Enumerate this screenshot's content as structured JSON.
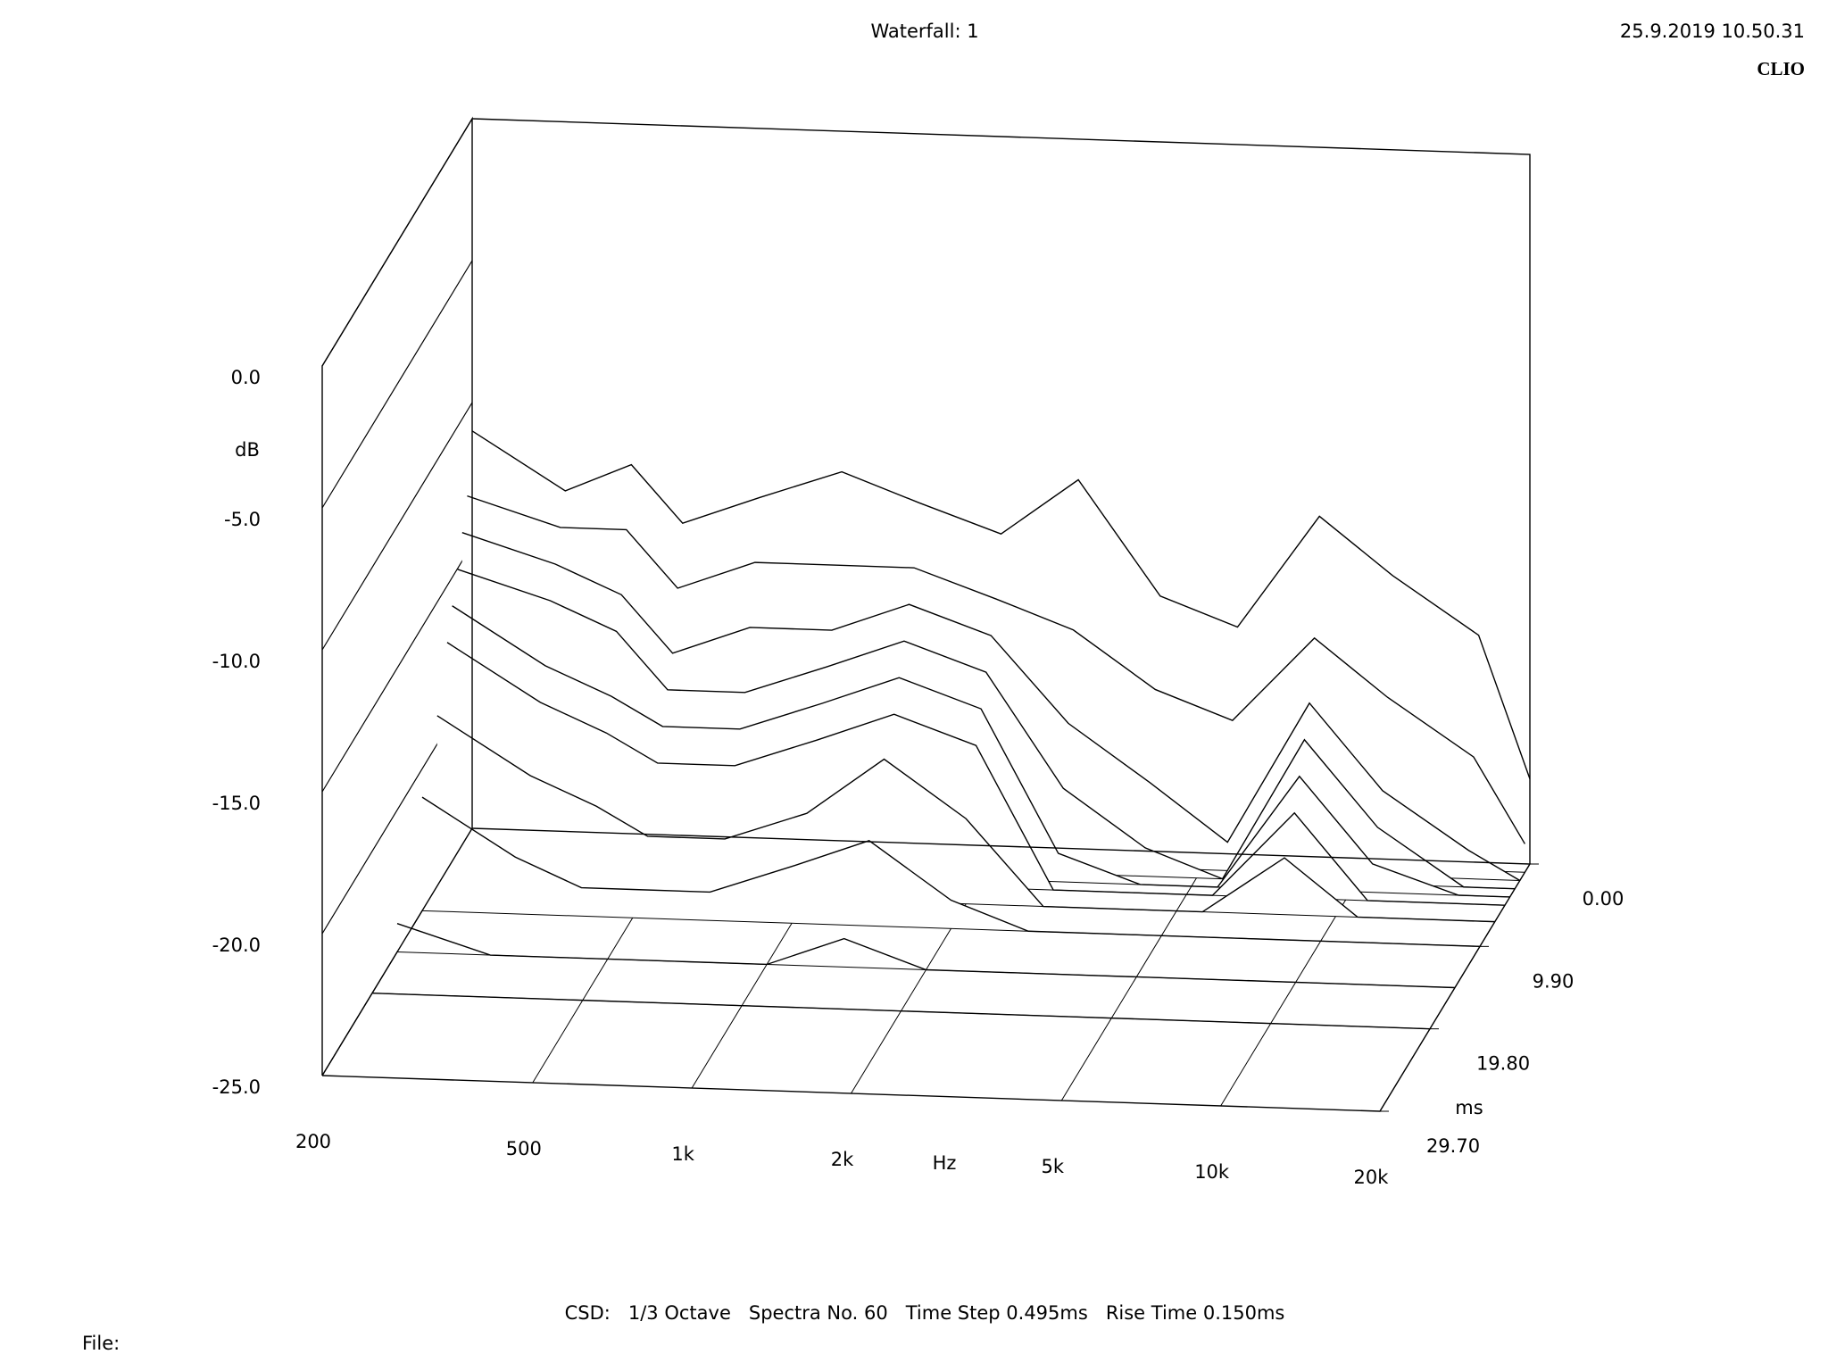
{
  "chart_data": {
    "type": "waterfall",
    "title": "Waterfall: 1",
    "timestamp": "25.9.2019 10.50.31",
    "brand": "CLIO",
    "footer": "CSD:   1/3 Octave   Spectra No. 60   Time Step 0.495ms   Rise Time 0.150ms",
    "file_label": "File:",
    "x_label": "Hz",
    "z_label": "dB",
    "t_label": "ms",
    "x_scale": "log",
    "color": "#000000",
    "x": [
      200,
      300,
      400,
      500,
      700,
      1000,
      1400,
      2000,
      2800,
      4000,
      5600,
      8000,
      11000,
      16000,
      20000
    ],
    "xlim": [
      200,
      20000
    ],
    "xticks": [
      200,
      500,
      {
        "value": 1000,
        "label": "1k"
      },
      {
        "value": 2000,
        "label": "2k"
      },
      {
        "value": 5000,
        "label": "5k"
      },
      {
        "value": 10000,
        "label": "10k"
      },
      {
        "value": 20000,
        "label": "20k"
      }
    ],
    "zlim": [
      -25,
      0
    ],
    "zticks": [
      {
        "value": 0,
        "label": "0.0"
      },
      {
        "value": -5,
        "label": "-5.0"
      },
      {
        "value": -10,
        "label": "-10.0"
      },
      {
        "value": -15,
        "label": "-15.0"
      },
      {
        "value": -20,
        "label": "-20.0"
      },
      {
        "value": -25,
        "label": "-25.0"
      }
    ],
    "tlim": [
      0,
      29.7
    ],
    "tticks": [
      {
        "value": 0,
        "label": "0.00"
      },
      {
        "value": 9.9,
        "label": "9.90"
      },
      {
        "value": 19.8,
        "label": "19.80"
      },
      {
        "value": 29.7,
        "label": "29.70"
      }
    ],
    "series": [
      {
        "time": 0,
        "values": [
          -11,
          -13,
          -12,
          -14,
          -13,
          -12,
          -13,
          -14,
          -12,
          -16,
          -17,
          -13,
          -15,
          -17,
          -22
        ]
      },
      {
        "time": 0.99,
        "values": [
          -13,
          -14,
          -14,
          -16,
          -15,
          -15,
          -15,
          -16,
          -17,
          -19,
          -20,
          -17,
          -19,
          -21,
          -24
        ]
      },
      {
        "time": 1.98,
        "values": [
          -14,
          -15,
          -16,
          -18,
          -17,
          -17,
          -16,
          -17,
          -20,
          -22,
          -24,
          -19,
          -22,
          -24,
          -25
        ]
      },
      {
        "time": 2.97,
        "values": [
          -15,
          -16,
          -17,
          -19,
          -19,
          -18,
          -17,
          -18,
          -22,
          -24,
          -25,
          -20,
          -23,
          -25,
          -25
        ]
      },
      {
        "time": 3.96,
        "values": [
          -16,
          -18,
          -19,
          -20,
          -20,
          -19,
          -18,
          -19,
          -24,
          -25,
          -25,
          -21,
          -24,
          -25,
          -25
        ]
      },
      {
        "time": 4.95,
        "values": [
          -17,
          -19,
          -20,
          -21,
          -21,
          -20,
          -19,
          -20,
          -25,
          -25,
          -25,
          -22,
          -25,
          -25,
          -25
        ]
      },
      {
        "time": 6.93,
        "values": [
          -19,
          -21,
          -22,
          -23,
          -23,
          -22,
          -20,
          -22,
          -25,
          -25,
          -25,
          -23,
          -25,
          -25,
          -25
        ]
      },
      {
        "time": 9.9,
        "values": [
          -21,
          -23,
          -24,
          -24,
          -24,
          -23,
          -22,
          -24,
          -25,
          -25,
          -25,
          -25,
          -25,
          -25,
          -25
        ]
      },
      {
        "time": 14.85,
        "values": [
          -24,
          -25,
          -25,
          -25,
          -25,
          -25,
          -24,
          -25,
          -25,
          -25,
          -25,
          -25,
          -25,
          -25,
          -25
        ]
      },
      {
        "time": 19.8,
        "values": [
          -25,
          -25,
          -25,
          -25,
          -25,
          -25,
          -25,
          -25,
          -25,
          -25,
          -25,
          -25,
          -25,
          -25,
          -25
        ]
      }
    ]
  }
}
